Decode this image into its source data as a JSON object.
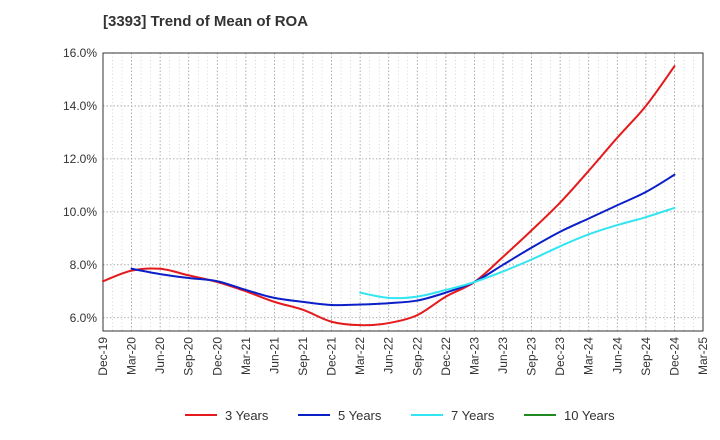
{
  "chart_data": {
    "type": "line",
    "title": "[3393]  Trend of Mean of ROA",
    "xlabel": "",
    "ylabel": "",
    "ylim": [
      5.5,
      16.0
    ],
    "yticks": [
      6.0,
      8.0,
      10.0,
      12.0,
      14.0,
      16.0
    ],
    "ytick_labels": [
      "6.0%",
      "8.0%",
      "10.0%",
      "12.0%",
      "14.0%",
      "16.0%"
    ],
    "x_labels": [
      "Dec-19",
      "Mar-20",
      "Jun-20",
      "Sep-20",
      "Dec-20",
      "Mar-21",
      "Jun-21",
      "Sep-21",
      "Dec-21",
      "Mar-22",
      "Jun-22",
      "Sep-22",
      "Dec-22",
      "Mar-23",
      "Jun-23",
      "Sep-23",
      "Dec-23",
      "Mar-24",
      "Jun-24",
      "Sep-24",
      "Dec-24",
      "Mar-25"
    ],
    "grid": true,
    "legend_position": "bottom",
    "series": [
      {
        "name": "3 Years",
        "color": "#e41a1c",
        "values": [
          7.38,
          7.78,
          7.85,
          7.6,
          7.35,
          7.0,
          6.6,
          6.3,
          5.85,
          5.72,
          5.8,
          6.1,
          6.8,
          7.35,
          8.3,
          9.3,
          10.35,
          11.55,
          12.8,
          14.0,
          15.5,
          null
        ]
      },
      {
        "name": "5 Years",
        "color": "#0a1fc8",
        "values": [
          null,
          7.85,
          7.65,
          7.5,
          7.38,
          7.05,
          6.75,
          6.6,
          6.48,
          6.5,
          6.55,
          6.65,
          6.95,
          7.35,
          8.0,
          8.65,
          9.25,
          9.75,
          10.25,
          10.75,
          11.4,
          null
        ]
      },
      {
        "name": "7 Years",
        "color": "#33e5f0",
        "values": [
          null,
          null,
          null,
          null,
          null,
          null,
          null,
          null,
          null,
          6.95,
          6.75,
          6.8,
          7.05,
          7.35,
          7.75,
          8.2,
          8.7,
          9.15,
          9.5,
          9.8,
          10.15,
          null
        ]
      },
      {
        "name": "10 Years",
        "color": "#1f8a1f",
        "values": [
          null,
          null,
          null,
          null,
          null,
          null,
          null,
          null,
          null,
          null,
          null,
          null,
          null,
          null,
          null,
          null,
          null,
          null,
          null,
          null,
          null,
          null
        ]
      }
    ]
  }
}
